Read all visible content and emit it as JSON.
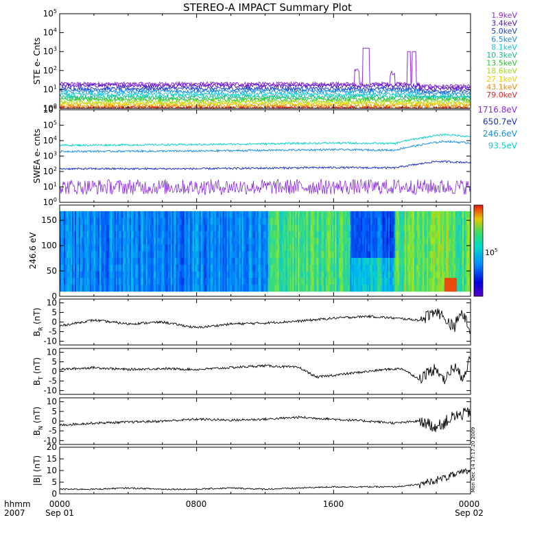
{
  "title": "STEREO-A IMPACT Summary Plot",
  "footer": {
    "unit_label": "hhmm",
    "year_label": "2007",
    "ticks": [
      {
        "time": "0000",
        "date": "Sep 01"
      },
      {
        "time": "0800",
        "date": ""
      },
      {
        "time": "1600",
        "date": ""
      },
      {
        "time": "0000",
        "date": "Sep 02"
      }
    ]
  },
  "timestamp": "Mon Dec 14 17:17:20 2009",
  "chart_data": [
    {
      "type": "line",
      "panel": "ste",
      "ylabel": "STE e- Cnts",
      "yscale": "log",
      "ylim_exp": [
        0,
        5
      ],
      "y_tick_exponents": [
        0,
        1,
        2,
        3,
        4,
        5
      ],
      "series": [
        {
          "name": "1.9keV",
          "color": "#8a2be2",
          "level": 20
        },
        {
          "name": "3.4keV",
          "color": "#5a0fc8",
          "level": 16
        },
        {
          "name": "5.0keV",
          "color": "#1f3fd0",
          "level": 11
        },
        {
          "name": "6.5keV",
          "color": "#1a8fe0",
          "level": 8
        },
        {
          "name": "8.1keV",
          "color": "#10c8d8",
          "level": 5.5
        },
        {
          "name": "10.3keV",
          "color": "#10c090",
          "level": 4
        },
        {
          "name": "13.5keV",
          "color": "#2ec82e",
          "level": 3
        },
        {
          "name": "18.6keV",
          "color": "#a8d820",
          "level": 2.2
        },
        {
          "name": "27.1keV",
          "color": "#e8d000",
          "level": 1.7
        },
        {
          "name": "43.1keV",
          "color": "#e88a00",
          "level": 1.3
        },
        {
          "name": "79.0keV",
          "color": "#e02020",
          "level": 1.05
        }
      ],
      "spikes": [
        {
          "t_start_h": 17.7,
          "t_end_h": 18.1,
          "value": 1500
        },
        {
          "t_start_h": 20.3,
          "t_end_h": 20.5,
          "value": 1000
        },
        {
          "t_start_h": 20.6,
          "t_end_h": 20.8,
          "value": 1000
        }
      ]
    },
    {
      "type": "line",
      "panel": "swea",
      "ylabel": "SWEA e- cnts",
      "yscale": "log",
      "ylim_exp": [
        0,
        6
      ],
      "y_tick_exponents": [
        0,
        1,
        2,
        3,
        4,
        5,
        6
      ],
      "series": [
        {
          "name": "1716.8eV",
          "color": "#8a2be2",
          "points": [
            [
              0,
              10
            ],
            [
              24,
              10
            ]
          ]
        },
        {
          "name": "650.7eV",
          "color": "#1a2fc8",
          "points": [
            [
              0,
              150
            ],
            [
              8,
              150
            ],
            [
              16,
              180
            ],
            [
              19.6,
              170
            ],
            [
              21,
              300
            ],
            [
              22,
              450
            ],
            [
              24,
              380
            ]
          ]
        },
        {
          "name": "246.6eV",
          "color": "#1a8fe0",
          "points": [
            [
              0,
              2000
            ],
            [
              8,
              2100
            ],
            [
              16,
              2600
            ],
            [
              19.6,
              2400
            ],
            [
              21,
              5000
            ],
            [
              22.5,
              9000
            ],
            [
              24,
              7000
            ]
          ]
        },
        {
          "name": "93.5eV",
          "color": "#10d0c8",
          "points": [
            [
              0,
              5000
            ],
            [
              8,
              5500
            ],
            [
              16,
              7000
            ],
            [
              19.6,
              6500
            ],
            [
              21,
              14000
            ],
            [
              22.5,
              25000
            ],
            [
              24,
              18000
            ]
          ]
        }
      ]
    },
    {
      "type": "heatmap",
      "panel": "pad",
      "ylabel": "246.6 eV",
      "ylim": [
        0,
        180
      ],
      "y_ticks": [
        0,
        50,
        100,
        150
      ],
      "colorbar_label": "10^5",
      "colorbar_label_base": "10",
      "colorbar_label_exp": "5",
      "regions": [
        {
          "t_start_h": 0,
          "t_end_h": 12.2,
          "level": 0.3
        },
        {
          "t_start_h": 12.2,
          "t_end_h": 17.0,
          "level": 0.6
        },
        {
          "t_start_h": 17.0,
          "t_end_h": 19.6,
          "level": 0.45
        },
        {
          "t_start_h": 19.6,
          "t_end_h": 24,
          "level": 0.65
        }
      ]
    },
    {
      "type": "line",
      "panel": "br",
      "ylabel": "B_R (nT)",
      "ylabel_base": "B",
      "ylabel_sub": "R",
      "ylabel_unit": " (nT)",
      "ylim": [
        -12,
        12
      ],
      "y_ticks": [
        -10,
        -5,
        0,
        5,
        10
      ],
      "points": [
        [
          0,
          -2
        ],
        [
          2,
          1
        ],
        [
          4,
          -1
        ],
        [
          6,
          0
        ],
        [
          8,
          -3
        ],
        [
          10,
          -1
        ],
        [
          12,
          -0.5
        ],
        [
          14,
          0.5
        ],
        [
          16,
          2
        ],
        [
          18,
          3
        ],
        [
          19.6,
          2
        ],
        [
          21,
          1
        ],
        [
          22,
          6
        ],
        [
          23,
          -3
        ],
        [
          23.5,
          5
        ],
        [
          24,
          -4
        ]
      ]
    },
    {
      "type": "line",
      "panel": "bt",
      "ylabel": "B_T (nT)",
      "ylabel_base": "B",
      "ylabel_sub": "T",
      "ylabel_unit": " (nT)",
      "ylim": [
        -12,
        12
      ],
      "y_ticks": [
        -10,
        -5,
        0,
        5,
        10
      ],
      "points": [
        [
          0,
          1
        ],
        [
          2,
          2
        ],
        [
          4,
          1
        ],
        [
          6,
          1.5
        ],
        [
          8,
          1
        ],
        [
          10,
          2
        ],
        [
          12,
          3
        ],
        [
          13,
          2.5
        ],
        [
          14,
          2
        ],
        [
          15,
          -3
        ],
        [
          16,
          -2
        ],
        [
          17,
          -1
        ],
        [
          18,
          0
        ],
        [
          19,
          1
        ],
        [
          20,
          1.5
        ],
        [
          21,
          -4
        ],
        [
          22,
          2
        ],
        [
          22.5,
          -5
        ],
        [
          23,
          3
        ],
        [
          23.5,
          -3
        ],
        [
          24,
          6
        ]
      ]
    },
    {
      "type": "line",
      "panel": "bn",
      "ylabel": "B_N (nT)",
      "ylabel_base": "B",
      "ylabel_sub": "N",
      "ylabel_unit": " (nT)",
      "ylim": [
        -12,
        12
      ],
      "y_ticks": [
        -10,
        -5,
        0,
        5,
        10
      ],
      "points": [
        [
          0,
          -2
        ],
        [
          2,
          -1
        ],
        [
          4,
          -0.5
        ],
        [
          6,
          0
        ],
        [
          8,
          1
        ],
        [
          10,
          0.5
        ],
        [
          12,
          1
        ],
        [
          14,
          2
        ],
        [
          16,
          1
        ],
        [
          18,
          0
        ],
        [
          19.6,
          -1
        ],
        [
          21,
          0
        ],
        [
          22,
          -3
        ],
        [
          23,
          2
        ],
        [
          24,
          5
        ]
      ]
    },
    {
      "type": "line",
      "panel": "bmag",
      "ylabel": "|B| (nT)",
      "ylim": [
        0,
        20
      ],
      "y_ticks": [
        0,
        5,
        10,
        15,
        20
      ],
      "points": [
        [
          0,
          2
        ],
        [
          2,
          2
        ],
        [
          4,
          2.5
        ],
        [
          6,
          2
        ],
        [
          8,
          2
        ],
        [
          10,
          2.5
        ],
        [
          12,
          2
        ],
        [
          14,
          2.5
        ],
        [
          16,
          3
        ],
        [
          18,
          3
        ],
        [
          19.6,
          3
        ],
        [
          21,
          4
        ],
        [
          22,
          6
        ],
        [
          23,
          8
        ],
        [
          24,
          10
        ]
      ]
    }
  ]
}
